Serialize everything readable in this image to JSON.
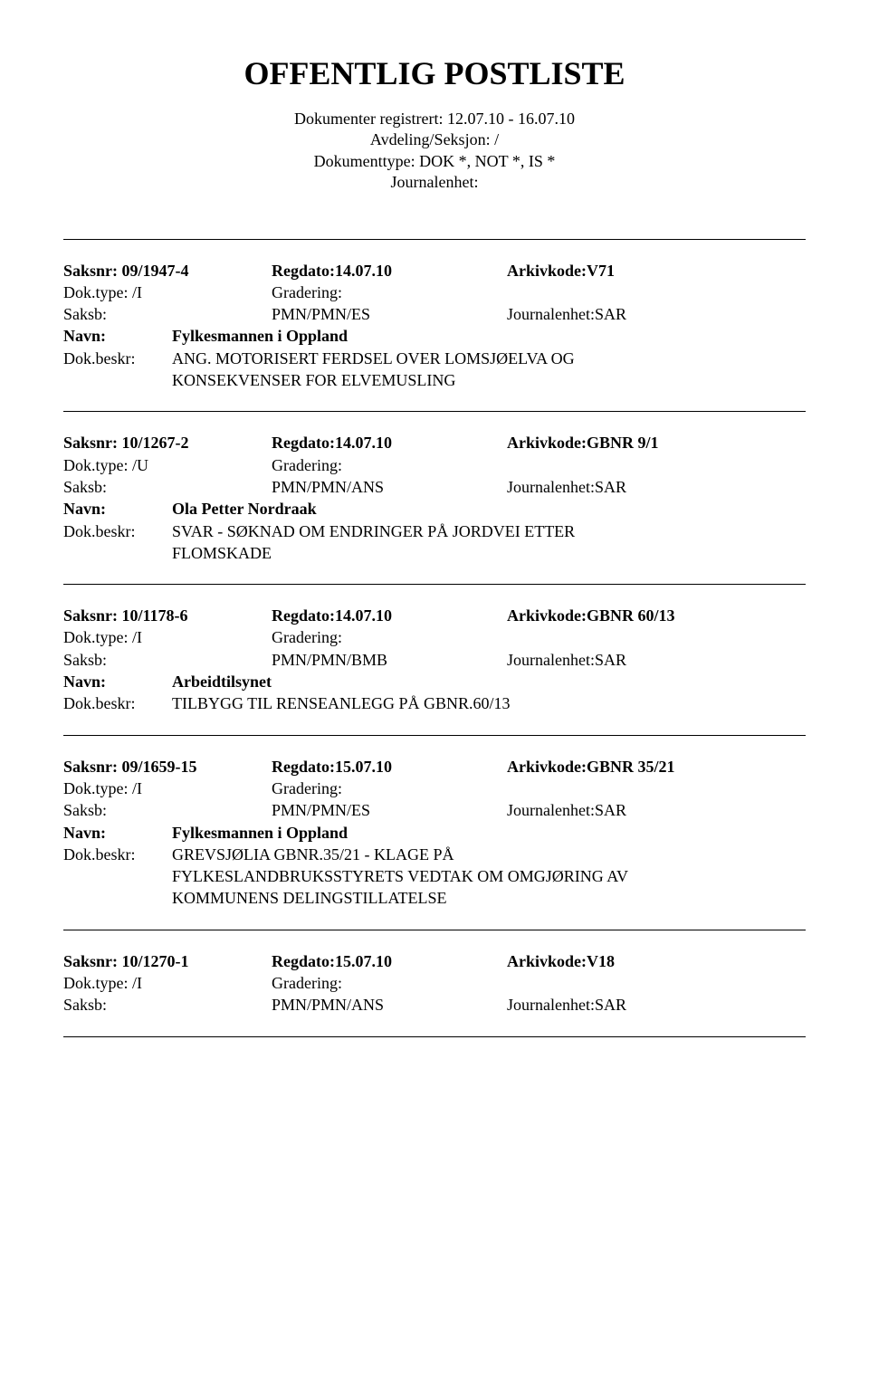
{
  "title": "OFFENTLIG POSTLISTE",
  "header": {
    "line1": "Dokumenter registrert: 12.07.10 - 16.07.10",
    "line2": "Avdeling/Seksjon: /",
    "line3": "Dokumenttype: DOK *, NOT *, IS *",
    "line4": "Journalenhet:"
  },
  "labels": {
    "saksnr": "Saksnr:",
    "regdato": "Regdato:",
    "arkivkode": "Arkivkode:",
    "doktype": "Dok.type:",
    "gradering": "Gradering:",
    "saksb": "Saksb:",
    "journalenhet": "Journalenhet:",
    "navn": "Navn:",
    "dokbeskr": "Dok.beskr:"
  },
  "entries": [
    {
      "saksnr": "09/1947-4",
      "regdato": "14.07.10",
      "arkivkode": "V71",
      "doktype": "/I",
      "saksb": "PMN/PMN/ES",
      "journalenhet": "SAR",
      "navn": "Fylkesmannen i Oppland",
      "beskr_first": "ANG. MOTORISERT FERDSEL OVER LOMSJØELVA OG",
      "beskr_rest": [
        "KONSEKVENSER FOR ELVEMUSLING"
      ]
    },
    {
      "saksnr": "10/1267-2",
      "regdato": "14.07.10",
      "arkivkode": "GBNR 9/1",
      "doktype": "/U",
      "saksb": "PMN/PMN/ANS",
      "journalenhet": "SAR",
      "navn": "Ola Petter Nordraak",
      "beskr_first": "SVAR - SØKNAD OM ENDRINGER PÅ JORDVEI ETTER",
      "beskr_rest": [
        "FLOMSKADE"
      ]
    },
    {
      "saksnr": "10/1178-6",
      "regdato": "14.07.10",
      "arkivkode": "GBNR 60/13",
      "doktype": "/I",
      "saksb": "PMN/PMN/BMB",
      "journalenhet": "SAR",
      "navn": "Arbeidtilsynet",
      "beskr_first": "TILBYGG TIL RENSEANLEGG PÅ GBNR.60/13",
      "beskr_rest": []
    },
    {
      "saksnr": "09/1659-15",
      "regdato": "15.07.10",
      "arkivkode": "GBNR 35/21",
      "doktype": "/I",
      "saksb": "PMN/PMN/ES",
      "journalenhet": "SAR",
      "navn": "Fylkesmannen i Oppland",
      "beskr_first": "GREVSJØLIA GBNR.35/21 - KLAGE PÅ",
      "beskr_rest": [
        "FYLKESLANDBRUKSSTYRETS VEDTAK OM OMGJØRING AV",
        "KOMMUNENS DELINGSTILLATELSE"
      ]
    },
    {
      "saksnr": "10/1270-1",
      "regdato": "15.07.10",
      "arkivkode": "V18",
      "doktype": "/I",
      "saksb": "PMN/PMN/ANS",
      "journalenhet": "SAR",
      "navn": null,
      "beskr_first": null,
      "beskr_rest": [],
      "partial": true
    }
  ]
}
